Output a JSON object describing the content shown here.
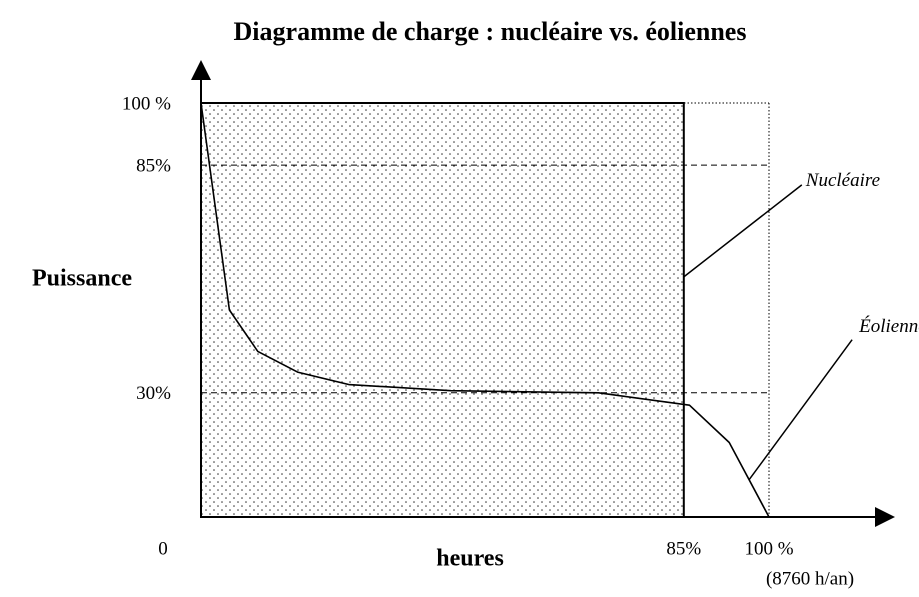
{
  "chart_data": {
    "type": "load-duration",
    "title": "Diagramme de charge : nucléaire vs. éoliennes",
    "ylabel": "Puissance",
    "xlabel": "heures",
    "xlim": [
      0,
      100
    ],
    "ylim": [
      0,
      100
    ],
    "xticks": [
      0,
      {
        "value": 85,
        "label": "85%"
      },
      {
        "value": 100,
        "label": "100 %"
      }
    ],
    "yticks": [
      {
        "value": 30,
        "label": "30%"
      },
      {
        "value": 85,
        "label": "85%"
      },
      {
        "value": 100,
        "label": "100 %"
      }
    ],
    "grid": true,
    "annotations": [
      "(8760 h/an)"
    ],
    "series": [
      {
        "name": "Nucléaire",
        "style": "area",
        "color": "#000000",
        "x": [
          0,
          85
        ],
        "values": [
          100,
          100
        ]
      },
      {
        "name": "Éoliennes",
        "style": "line",
        "color": "#000000",
        "x": [
          0,
          5,
          10,
          17,
          26,
          44,
          70,
          86,
          93,
          100
        ],
        "values": [
          100,
          50,
          40,
          35,
          32,
          30.5,
          30,
          27,
          18,
          0
        ]
      }
    ]
  }
}
